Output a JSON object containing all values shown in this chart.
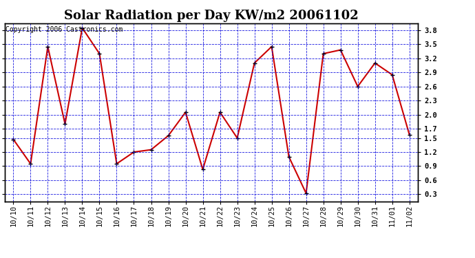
{
  "title": "Solar Radiation per Day KW/m2 20061102",
  "copyright_text": "Copyright 2006 Castronics.com",
  "x_labels": [
    "10/10",
    "10/11",
    "10/12",
    "10/13",
    "10/14",
    "10/15",
    "10/16",
    "10/17",
    "10/18",
    "10/19",
    "10/20",
    "10/21",
    "10/22",
    "10/23",
    "10/24",
    "10/25",
    "10/26",
    "10/27",
    "10/28",
    "10/29",
    "10/30",
    "10/31",
    "11/01",
    "11/02"
  ],
  "y_values": [
    1.47,
    0.95,
    3.45,
    1.8,
    3.85,
    3.3,
    0.95,
    1.2,
    1.25,
    1.55,
    2.05,
    0.83,
    2.05,
    1.5,
    3.1,
    3.45,
    1.1,
    0.32,
    3.3,
    3.38,
    2.6,
    3.1,
    2.85,
    1.57
  ],
  "line_color": "#cc0000",
  "marker_color": "#000000",
  "bg_color": "#ffffff",
  "grid_color": "#0000dd",
  "ylim_min": 0.15,
  "ylim_max": 3.95,
  "yticks": [
    0.3,
    0.6,
    0.9,
    1.2,
    1.5,
    1.7,
    2.0,
    2.3,
    2.6,
    2.9,
    3.2,
    3.5,
    3.8
  ],
  "title_fontsize": 13,
  "copyright_fontsize": 7,
  "tick_fontsize": 7.5
}
